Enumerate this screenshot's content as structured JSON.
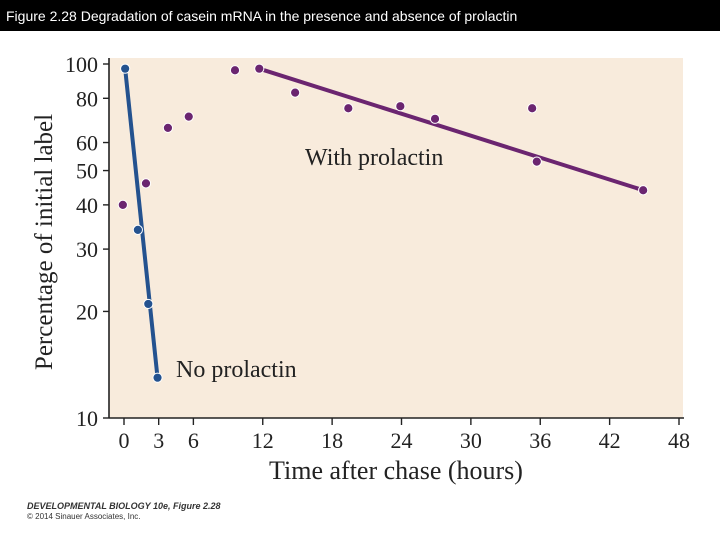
{
  "slide": {
    "title": "Figure 2.28  Degradation of casein mRNA in the presence and absence of prolactin",
    "credit_line1": "DEVELOPMENTAL BIOLOGY 10e, Figure 2.28",
    "credit_line2": "© 2014 Sinauer Associates, Inc."
  },
  "colors": {
    "plot_background": "#f8ebdc",
    "with_prolactin": "#6b2570",
    "no_prolactin": "#24528f",
    "axis": "#222222",
    "text": "#222222"
  },
  "chart_data": {
    "type": "scatter",
    "title": "",
    "xlabel": "Time after chase (hours)",
    "ylabel": "Percentage of initial label",
    "x_scale": "linear",
    "y_scale": "log",
    "xlim": [
      -2,
      48
    ],
    "ylim": [
      10,
      110
    ],
    "x_ticks": [
      0,
      3,
      6,
      12,
      18,
      24,
      30,
      36,
      42,
      48
    ],
    "x_tick_labels": [
      "0",
      "3",
      "6",
      "12",
      "18",
      "24",
      "30",
      "36",
      "42",
      "48"
    ],
    "y_ticks": [
      10,
      20,
      30,
      40,
      50,
      60,
      80,
      100
    ],
    "y_tick_labels": [
      "10",
      "20",
      "30",
      "40",
      "50",
      "60",
      "80",
      "100"
    ],
    "series": [
      {
        "name": "With prolactin",
        "label": "With prolactin",
        "color": "#6b2570",
        "points": [
          {
            "x": -0.1,
            "y": 40
          },
          {
            "x": 1.9,
            "y": 46
          },
          {
            "x": 3.8,
            "y": 66
          },
          {
            "x": 5.6,
            "y": 71
          },
          {
            "x": 9.6,
            "y": 96
          },
          {
            "x": 11.7,
            "y": 97
          },
          {
            "x": 14.8,
            "y": 83
          },
          {
            "x": 19.4,
            "y": 75
          },
          {
            "x": 23.9,
            "y": 76
          },
          {
            "x": 26.9,
            "y": 70
          },
          {
            "x": 35.3,
            "y": 75
          },
          {
            "x": 35.7,
            "y": 53
          },
          {
            "x": 44.9,
            "y": 44
          }
        ],
        "trend_line": [
          {
            "x": 11.7,
            "y": 97
          },
          {
            "x": 44.9,
            "y": 44
          }
        ]
      },
      {
        "name": "No prolactin",
        "label": "No prolactin",
        "color": "#24528f",
        "points": [
          {
            "x": 0.1,
            "y": 97
          },
          {
            "x": 1.2,
            "y": 34
          },
          {
            "x": 2.1,
            "y": 21
          },
          {
            "x": 2.9,
            "y": 13
          }
        ],
        "trend_line": [
          {
            "x": 0.1,
            "y": 97
          },
          {
            "x": 2.9,
            "y": 13
          }
        ]
      }
    ]
  }
}
